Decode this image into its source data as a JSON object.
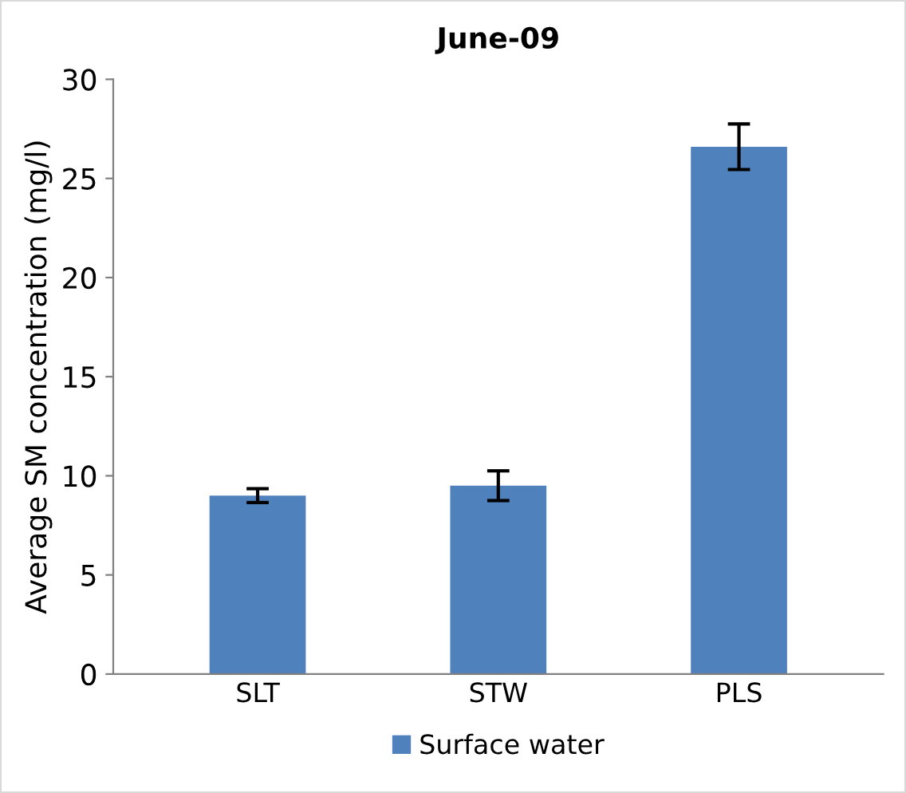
{
  "chart_data": {
    "type": "bar",
    "title": "June-09",
    "ylabel": "Average SM concentration (mg/l)",
    "categories": [
      "SLT",
      "STW",
      "PLS"
    ],
    "series": [
      {
        "name": "Surface water",
        "color": "#4f81bd",
        "values": [
          9.0,
          9.5,
          26.6
        ],
        "errors": [
          0.35,
          0.75,
          1.15
        ]
      }
    ],
    "ylim": [
      0,
      30
    ],
    "yticks": [
      0,
      5,
      10,
      15,
      20,
      25,
      30
    ],
    "grid": false,
    "legend": "bottom"
  }
}
